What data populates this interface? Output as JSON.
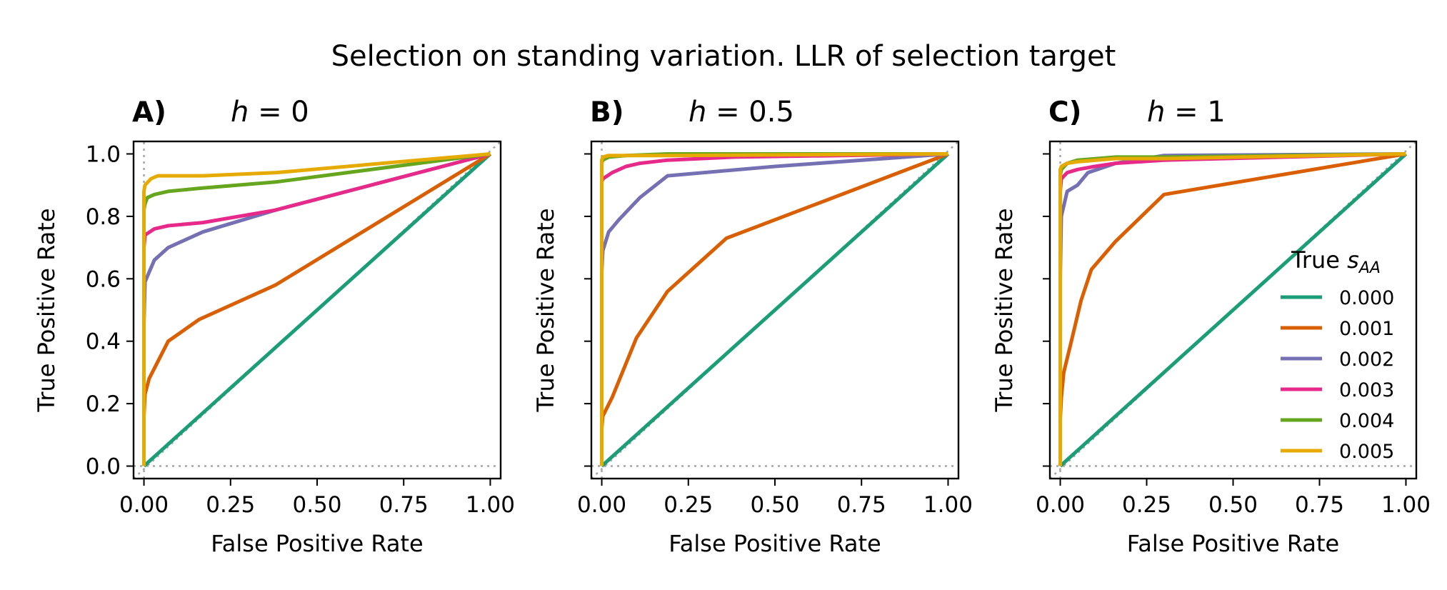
{
  "figure_title": "Selection on standing variation. LLR of selection target",
  "colors": {
    "0.000": "#1b9e77",
    "0.001": "#d95f02",
    "0.002": "#7570b3",
    "0.003": "#e7298a",
    "0.004": "#66a61e",
    "0.005": "#e6ab02",
    "reference": "#a6a6a6"
  },
  "legend": {
    "title_prefix": "True ",
    "title_symbol": "s",
    "title_subscript": "AA",
    "entries": [
      "0.000",
      "0.001",
      "0.002",
      "0.003",
      "0.004",
      "0.005"
    ],
    "placement": "lower-right of panel C"
  },
  "chart_data": [
    {
      "type": "line",
      "panel_letter": "A)",
      "h_symbol": "h",
      "h_value": "= 0",
      "xlabel": "False Positive Rate",
      "ylabel": "True Positive Rate",
      "xlim": [
        -0.03,
        1.03
      ],
      "ylim": [
        -0.04,
        1.04
      ],
      "xticks": [
        "0.00",
        "0.25",
        "0.50",
        "0.75",
        "1.00"
      ],
      "yticks": [
        "0.0",
        "0.2",
        "0.4",
        "0.6",
        "0.8",
        "1.0"
      ],
      "show_yticklabels": true,
      "grid": false,
      "series": [
        {
          "name": "0.000",
          "x": [
            0,
            1
          ],
          "y": [
            0,
            1
          ]
        },
        {
          "name": "0.001",
          "x": [
            0,
            0,
            0.003,
            0.015,
            0.07,
            0.16,
            0.38,
            1.0
          ],
          "y": [
            0,
            0.16,
            0.23,
            0.28,
            0.4,
            0.47,
            0.58,
            1.0
          ]
        },
        {
          "name": "0.002",
          "x": [
            0,
            0,
            0.003,
            0.03,
            0.07,
            0.17,
            0.38,
            1.0
          ],
          "y": [
            0,
            0.45,
            0.59,
            0.66,
            0.7,
            0.75,
            0.82,
            1.0
          ]
        },
        {
          "name": "0.003",
          "x": [
            0,
            0,
            0.003,
            0.03,
            0.07,
            0.17,
            0.38,
            1.0
          ],
          "y": [
            0,
            0.7,
            0.74,
            0.76,
            0.77,
            0.78,
            0.82,
            1.0
          ]
        },
        {
          "name": "0.004",
          "x": [
            0,
            0,
            0.003,
            0.01,
            0.03,
            0.07,
            0.16,
            0.38,
            1.0
          ],
          "y": [
            0,
            0.82,
            0.84,
            0.86,
            0.87,
            0.88,
            0.89,
            0.91,
            1.0
          ]
        },
        {
          "name": "0.005",
          "x": [
            0,
            0,
            0.003,
            0.02,
            0.04,
            0.07,
            0.17,
            0.38,
            1.0
          ],
          "y": [
            0,
            0.88,
            0.9,
            0.92,
            0.93,
            0.93,
            0.93,
            0.94,
            1.0
          ]
        }
      ]
    },
    {
      "type": "line",
      "panel_letter": "B)",
      "h_symbol": "h",
      "h_value": "= 0.5",
      "xlabel": "False Positive Rate",
      "ylabel": "True Positive Rate",
      "xlim": [
        -0.03,
        1.03
      ],
      "ylim": [
        -0.04,
        1.04
      ],
      "xticks": [
        "0.00",
        "0.25",
        "0.50",
        "0.75",
        "1.00"
      ],
      "yticks": [
        "0.0",
        "0.2",
        "0.4",
        "0.6",
        "0.8",
        "1.0"
      ],
      "show_yticklabels": false,
      "grid": false,
      "series": [
        {
          "name": "0.000",
          "x": [
            0,
            1
          ],
          "y": [
            0,
            1
          ]
        },
        {
          "name": "0.001",
          "x": [
            0,
            0,
            0.003,
            0.03,
            0.1,
            0.19,
            0.36,
            1.0
          ],
          "y": [
            0,
            0.12,
            0.16,
            0.22,
            0.41,
            0.56,
            0.73,
            1.0
          ]
        },
        {
          "name": "0.002",
          "x": [
            0,
            0,
            0.003,
            0.02,
            0.05,
            0.11,
            0.19,
            0.5,
            1.0
          ],
          "y": [
            0,
            0.62,
            0.69,
            0.75,
            0.79,
            0.86,
            0.93,
            0.96,
            1.0
          ]
        },
        {
          "name": "0.003",
          "x": [
            0,
            0,
            0.003,
            0.03,
            0.07,
            0.11,
            0.19,
            0.38,
            1.0
          ],
          "y": [
            0,
            0.91,
            0.92,
            0.94,
            0.96,
            0.97,
            0.98,
            0.99,
            1.0
          ]
        },
        {
          "name": "0.004",
          "x": [
            0,
            0,
            0.003,
            0.02,
            0.07,
            0.19,
            0.38,
            1.0
          ],
          "y": [
            0,
            0.97,
            0.98,
            0.99,
            0.995,
            1.0,
            1.0,
            1.0
          ]
        },
        {
          "name": "0.005",
          "x": [
            0,
            0,
            0.003,
            0.02,
            0.07,
            0.19,
            1.0
          ],
          "y": [
            0,
            0.98,
            0.99,
            0.995,
            0.995,
            0.995,
            1.0
          ]
        }
      ]
    },
    {
      "type": "line",
      "panel_letter": "C)",
      "h_symbol": "h",
      "h_value": "= 1",
      "xlabel": "False Positive Rate",
      "ylabel": "True Positive Rate",
      "xlim": [
        -0.03,
        1.03
      ],
      "ylim": [
        -0.04,
        1.04
      ],
      "xticks": [
        "0.00",
        "0.25",
        "0.50",
        "0.75",
        "1.00"
      ],
      "yticks": [
        "0.0",
        "0.2",
        "0.4",
        "0.6",
        "0.8",
        "1.0"
      ],
      "show_yticklabels": false,
      "grid": false,
      "series": [
        {
          "name": "0.000",
          "x": [
            0,
            1
          ],
          "y": [
            0,
            1
          ]
        },
        {
          "name": "0.001",
          "x": [
            0,
            0,
            0.003,
            0.01,
            0.03,
            0.06,
            0.09,
            0.16,
            0.3,
            1.0
          ],
          "y": [
            0,
            0.15,
            0.22,
            0.3,
            0.39,
            0.53,
            0.63,
            0.72,
            0.87,
            1.0
          ]
        },
        {
          "name": "0.002",
          "x": [
            0,
            0,
            0.003,
            0.02,
            0.05,
            0.08,
            0.16,
            0.3,
            1.0
          ],
          "y": [
            0,
            0.6,
            0.8,
            0.88,
            0.9,
            0.94,
            0.97,
            0.995,
            1.0
          ]
        },
        {
          "name": "0.003",
          "x": [
            0,
            0,
            0.003,
            0.02,
            0.05,
            0.1,
            0.16,
            0.3,
            1.0
          ],
          "y": [
            0,
            0.88,
            0.92,
            0.94,
            0.95,
            0.96,
            0.97,
            0.98,
            1.0
          ]
        },
        {
          "name": "0.004",
          "x": [
            0,
            0,
            0.003,
            0.02,
            0.05,
            0.16,
            0.3,
            1.0
          ],
          "y": [
            0,
            0.93,
            0.95,
            0.97,
            0.98,
            0.99,
            0.99,
            1.0
          ]
        },
        {
          "name": "0.005",
          "x": [
            0,
            0,
            0.003,
            0.02,
            0.05,
            0.16,
            0.3,
            1.0
          ],
          "y": [
            0,
            0.95,
            0.96,
            0.97,
            0.975,
            0.985,
            0.985,
            1.0
          ]
        }
      ]
    }
  ]
}
